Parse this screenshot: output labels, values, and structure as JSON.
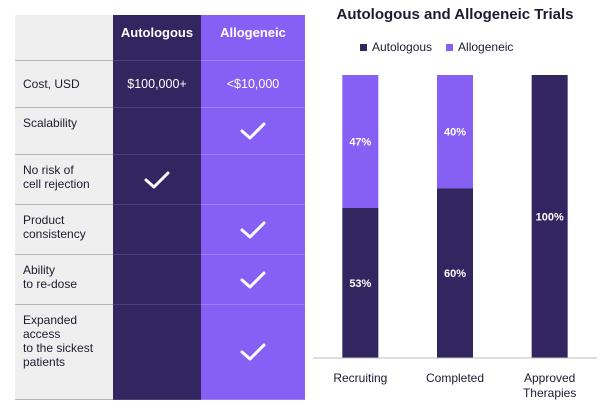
{
  "table": {
    "headers": {
      "autologous": "Autologous",
      "allogeneic": "Allogeneic"
    },
    "rows": [
      {
        "label": "Cost, USD",
        "autologous": "$100,000+",
        "allogeneic": "<$10,000"
      },
      {
        "label": "Scalability",
        "autologous_check": false,
        "allogeneic_check": true
      },
      {
        "label_lines": [
          "No risk of",
          "cell rejection"
        ],
        "autologous_check": true,
        "allogeneic_check": false
      },
      {
        "label_lines": [
          "Product",
          "consistency"
        ],
        "autologous_check": false,
        "allogeneic_check": true
      },
      {
        "label_lines": [
          "Ability",
          "to re-dose"
        ],
        "autologous_check": false,
        "allogeneic_check": true
      },
      {
        "label_lines": [
          "Expanded",
          "access",
          "to the sickest",
          "patients"
        ],
        "autologous_check": false,
        "allogeneic_check": true
      }
    ],
    "check_icon": "checkmark-icon",
    "colors": {
      "autologous": "#322560",
      "allogeneic": "#8660f5",
      "label_bg": "#efefef"
    }
  },
  "chart_data": {
    "type": "bar",
    "stacked": true,
    "title": "Autologous and Allogeneic Trials",
    "legend_position": "top",
    "categories": [
      [
        "Recruiting"
      ],
      [
        "Completed"
      ],
      [
        "Approved",
        "Therapies"
      ]
    ],
    "series": [
      {
        "name": "Autologous",
        "values": [
          53,
          60,
          100
        ],
        "labels": [
          "53%",
          "60%",
          "100%"
        ],
        "color": "#322560"
      },
      {
        "name": "Allogeneic",
        "values": [
          47,
          40,
          0
        ],
        "labels": [
          "47%",
          "40%",
          ""
        ],
        "color": "#8660f5"
      }
    ],
    "ylim": [
      0,
      100
    ],
    "grid": false
  }
}
